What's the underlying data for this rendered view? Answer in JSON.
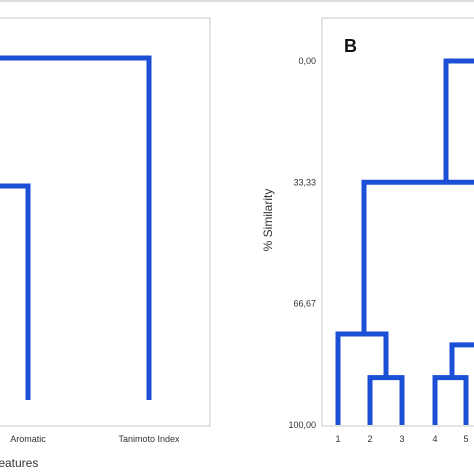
{
  "chart_data": [
    {
      "type": "dendrogram",
      "panel_label": "",
      "xlabel": "Features",
      "ylabel": "",
      "leaves": [
        "Aromatic",
        "Tanimoto Index"
      ],
      "link_color": "#1a4fd6"
    },
    {
      "type": "dendrogram",
      "panel_label": "B",
      "xlabel": "",
      "ylabel": "% Similarity",
      "yticks": [
        "0,00",
        "33,33",
        "66,67",
        "100,00"
      ],
      "ylim": [
        0,
        100
      ],
      "leaves": [
        "1",
        "2",
        "3",
        "4",
        "5"
      ],
      "merges": [
        {
          "a": "2",
          "b": "3",
          "similarity": 87
        },
        {
          "a": "4",
          "b": "5",
          "similarity": 87
        },
        {
          "a": "1",
          "b": "(2,3)",
          "similarity": 75
        },
        {
          "a": "(1,2,3)",
          "b": "(4,5)",
          "similarity": 33.3
        },
        {
          "a": "(1..5)",
          "b": "other",
          "similarity": 0
        }
      ],
      "link_color": "#1a4fd6"
    }
  ]
}
